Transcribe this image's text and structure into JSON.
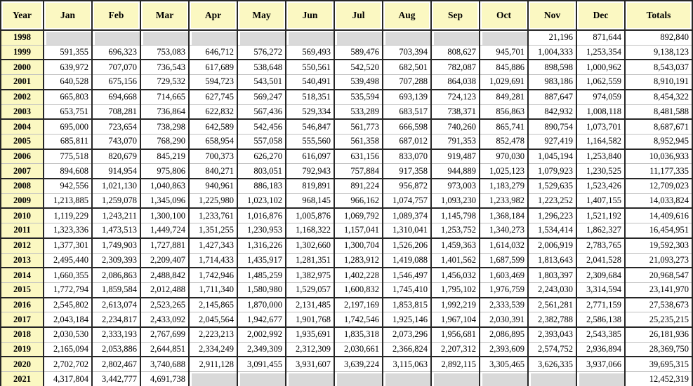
{
  "chart_data": {
    "type": "table",
    "title": "",
    "columns": [
      "Year",
      "Jan",
      "Feb",
      "Mar",
      "Apr",
      "May",
      "Jun",
      "Jul",
      "Aug",
      "Sep",
      "Oct",
      "Nov",
      "Dec",
      "Totals"
    ],
    "rows": [
      {
        "year": "1998",
        "months": [
          "",
          "",
          "",
          "",
          "",
          "",
          "",
          "",
          "",
          "",
          "21,196",
          "871,644"
        ],
        "total": "892,840"
      },
      {
        "year": "1999",
        "months": [
          "591,355",
          "696,323",
          "753,083",
          "646,712",
          "576,272",
          "569,493",
          "589,476",
          "703,394",
          "808,627",
          "945,701",
          "1,004,333",
          "1,253,354"
        ],
        "total": "9,138,123"
      },
      {
        "year": "2000",
        "months": [
          "639,972",
          "707,070",
          "736,543",
          "617,689",
          "538,648",
          "550,561",
          "542,520",
          "682,501",
          "782,087",
          "845,886",
          "898,598",
          "1,000,962"
        ],
        "total": "8,543,037"
      },
      {
        "year": "2001",
        "months": [
          "640,528",
          "675,156",
          "729,532",
          "594,723",
          "543,501",
          "540,491",
          "539,498",
          "707,288",
          "864,038",
          "1,029,691",
          "983,186",
          "1,062,559"
        ],
        "total": "8,910,191"
      },
      {
        "year": "2002",
        "months": [
          "665,803",
          "694,668",
          "714,665",
          "627,745",
          "569,247",
          "518,351",
          "535,594",
          "693,139",
          "724,123",
          "849,281",
          "887,647",
          "974,059"
        ],
        "total": "8,454,322"
      },
      {
        "year": "2003",
        "months": [
          "653,751",
          "708,281",
          "736,864",
          "622,832",
          "567,436",
          "529,334",
          "533,289",
          "683,517",
          "738,371",
          "856,863",
          "842,932",
          "1,008,118"
        ],
        "total": "8,481,588"
      },
      {
        "year": "2004",
        "months": [
          "695,000",
          "723,654",
          "738,298",
          "642,589",
          "542,456",
          "546,847",
          "561,773",
          "666,598",
          "740,260",
          "865,741",
          "890,754",
          "1,073,701"
        ],
        "total": "8,687,671"
      },
      {
        "year": "2005",
        "months": [
          "685,811",
          "743,070",
          "768,290",
          "658,954",
          "557,058",
          "555,560",
          "561,358",
          "687,012",
          "791,353",
          "852,478",
          "927,419",
          "1,164,582"
        ],
        "total": "8,952,945"
      },
      {
        "year": "2006",
        "months": [
          "775,518",
          "820,679",
          "845,219",
          "700,373",
          "626,270",
          "616,097",
          "631,156",
          "833,070",
          "919,487",
          "970,030",
          "1,045,194",
          "1,253,840"
        ],
        "total": "10,036,933"
      },
      {
        "year": "2007",
        "months": [
          "894,608",
          "914,954",
          "975,806",
          "840,271",
          "803,051",
          "792,943",
          "757,884",
          "917,358",
          "944,889",
          "1,025,123",
          "1,079,923",
          "1,230,525"
        ],
        "total": "11,177,335"
      },
      {
        "year": "2008",
        "months": [
          "942,556",
          "1,021,130",
          "1,040,863",
          "940,961",
          "886,183",
          "819,891",
          "891,224",
          "956,872",
          "973,003",
          "1,183,279",
          "1,529,635",
          "1,523,426"
        ],
        "total": "12,709,023"
      },
      {
        "year": "2009",
        "months": [
          "1,213,885",
          "1,259,078",
          "1,345,096",
          "1,225,980",
          "1,023,102",
          "968,145",
          "966,162",
          "1,074,757",
          "1,093,230",
          "1,233,982",
          "1,223,252",
          "1,407,155"
        ],
        "total": "14,033,824"
      },
      {
        "year": "2010",
        "months": [
          "1,119,229",
          "1,243,211",
          "1,300,100",
          "1,233,761",
          "1,016,876",
          "1,005,876",
          "1,069,792",
          "1,089,374",
          "1,145,798",
          "1,368,184",
          "1,296,223",
          "1,521,192"
        ],
        "total": "14,409,616"
      },
      {
        "year": "2011",
        "months": [
          "1,323,336",
          "1,473,513",
          "1,449,724",
          "1,351,255",
          "1,230,953",
          "1,168,322",
          "1,157,041",
          "1,310,041",
          "1,253,752",
          "1,340,273",
          "1,534,414",
          "1,862,327"
        ],
        "total": "16,454,951"
      },
      {
        "year": "2012",
        "months": [
          "1,377,301",
          "1,749,903",
          "1,727,881",
          "1,427,343",
          "1,316,226",
          "1,302,660",
          "1,300,704",
          "1,526,206",
          "1,459,363",
          "1,614,032",
          "2,006,919",
          "2,783,765"
        ],
        "total": "19,592,303"
      },
      {
        "year": "2013",
        "months": [
          "2,495,440",
          "2,309,393",
          "2,209,407",
          "1,714,433",
          "1,435,917",
          "1,281,351",
          "1,283,912",
          "1,419,088",
          "1,401,562",
          "1,687,599",
          "1,813,643",
          "2,041,528"
        ],
        "total": "21,093,273"
      },
      {
        "year": "2014",
        "months": [
          "1,660,355",
          "2,086,863",
          "2,488,842",
          "1,742,946",
          "1,485,259",
          "1,382,975",
          "1,402,228",
          "1,546,497",
          "1,456,032",
          "1,603,469",
          "1,803,397",
          "2,309,684"
        ],
        "total": "20,968,547"
      },
      {
        "year": "2015",
        "months": [
          "1,772,794",
          "1,859,584",
          "2,012,488",
          "1,711,340",
          "1,580,980",
          "1,529,057",
          "1,600,832",
          "1,745,410",
          "1,795,102",
          "1,976,759",
          "2,243,030",
          "3,314,594"
        ],
        "total": "23,141,970"
      },
      {
        "year": "2016",
        "months": [
          "2,545,802",
          "2,613,074",
          "2,523,265",
          "2,145,865",
          "1,870,000",
          "2,131,485",
          "2,197,169",
          "1,853,815",
          "1,992,219",
          "2,333,539",
          "2,561,281",
          "2,771,159"
        ],
        "total": "27,538,673"
      },
      {
        "year": "2017",
        "months": [
          "2,043,184",
          "2,234,817",
          "2,433,092",
          "2,045,564",
          "1,942,677",
          "1,901,768",
          "1,742,546",
          "1,925,146",
          "1,967,104",
          "2,030,391",
          "2,382,788",
          "2,586,138"
        ],
        "total": "25,235,215"
      },
      {
        "year": "2018",
        "months": [
          "2,030,530",
          "2,333,193",
          "2,767,699",
          "2,223,213",
          "2,002,992",
          "1,935,691",
          "1,835,318",
          "2,073,296",
          "1,956,681",
          "2,086,895",
          "2,393,043",
          "2,543,385"
        ],
        "total": "26,181,936"
      },
      {
        "year": "2019",
        "months": [
          "2,165,094",
          "2,053,886",
          "2,644,851",
          "2,334,249",
          "2,349,309",
          "2,312,309",
          "2,030,661",
          "2,366,824",
          "2,207,312",
          "2,393,609",
          "2,574,752",
          "2,936,894"
        ],
        "total": "28,369,750"
      },
      {
        "year": "2020",
        "months": [
          "2,702,702",
          "2,802,467",
          "3,740,688",
          "2,911,128",
          "3,091,455",
          "3,931,607",
          "3,639,224",
          "3,115,063",
          "2,892,115",
          "3,305,465",
          "3,626,335",
          "3,937,066"
        ],
        "total": "39,695,315"
      },
      {
        "year": "2021",
        "months": [
          "4,317,804",
          "3,442,777",
          "4,691,738",
          "",
          "",
          "",
          "",
          "",
          "",
          "",
          "",
          ""
        ],
        "total": "12,452,319"
      }
    ]
  },
  "colors": {
    "header_bg": "#FBF8C2",
    "empty_cell_bg": "#D9D9D9",
    "grid_dark": "#262626",
    "grid_light": "#BFBFBF"
  }
}
